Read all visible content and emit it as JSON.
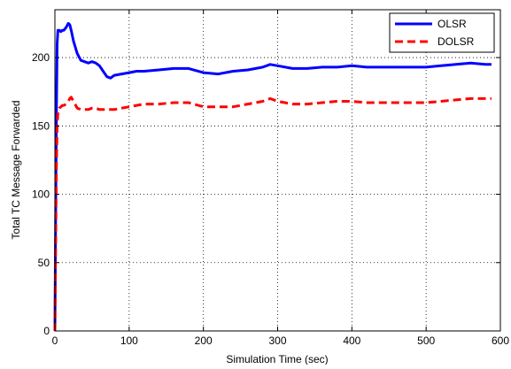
{
  "chart_data": {
    "type": "line",
    "title": "",
    "xlabel": "Simulation Time (sec)",
    "ylabel": "Total TC Message Forwarded",
    "xlim": [
      0,
      600
    ],
    "ylim": [
      0,
      235
    ],
    "xticks": [
      0,
      100,
      200,
      300,
      400,
      500,
      600
    ],
    "yticks": [
      0,
      50,
      100,
      150,
      200
    ],
    "grid": true,
    "grid_style": "dotted",
    "legend_position": "top-right",
    "series": [
      {
        "name": "OLSR",
        "color": "#0000ff",
        "line_style": "solid",
        "x": [
          0,
          1,
          2,
          3,
          4,
          6,
          8,
          10,
          12,
          15,
          18,
          20,
          22,
          25,
          30,
          35,
          40,
          45,
          50,
          55,
          60,
          65,
          70,
          75,
          80,
          90,
          100,
          110,
          120,
          140,
          160,
          180,
          200,
          220,
          240,
          260,
          280,
          290,
          300,
          320,
          340,
          360,
          380,
          400,
          420,
          440,
          460,
          480,
          500,
          520,
          540,
          560,
          580,
          588
        ],
        "y": [
          0,
          80,
          160,
          210,
          220,
          220,
          219,
          220,
          220,
          222,
          225,
          224,
          220,
          212,
          203,
          198,
          197,
          196,
          197,
          196,
          194,
          190,
          186,
          185,
          187,
          188,
          189,
          190,
          190,
          191,
          192,
          192,
          189,
          188,
          190,
          191,
          193,
          195,
          194,
          192,
          192,
          193,
          193,
          194,
          193,
          193,
          193,
          193,
          193,
          194,
          195,
          196,
          195,
          195
        ]
      },
      {
        "name": "DOLSR",
        "color": "#ff0000",
        "line_style": "dashed",
        "x": [
          0,
          1,
          2,
          3,
          4,
          6,
          8,
          10,
          12,
          15,
          18,
          20,
          22,
          25,
          30,
          35,
          40,
          45,
          50,
          55,
          60,
          70,
          80,
          90,
          100,
          110,
          120,
          140,
          160,
          180,
          200,
          220,
          240,
          260,
          280,
          290,
          300,
          320,
          340,
          360,
          380,
          400,
          420,
          440,
          460,
          480,
          500,
          520,
          540,
          560,
          580,
          588
        ],
        "y": [
          0,
          60,
          120,
          150,
          160,
          163,
          164,
          165,
          165,
          166,
          168,
          170,
          171,
          168,
          163,
          162,
          162,
          162,
          163,
          163,
          162,
          162,
          162,
          163,
          164,
          165,
          166,
          166,
          167,
          167,
          164,
          164,
          164,
          166,
          168,
          170,
          168,
          166,
          166,
          167,
          168,
          168,
          167,
          167,
          167,
          167,
          167,
          168,
          169,
          170,
          170,
          170
        ]
      }
    ]
  }
}
